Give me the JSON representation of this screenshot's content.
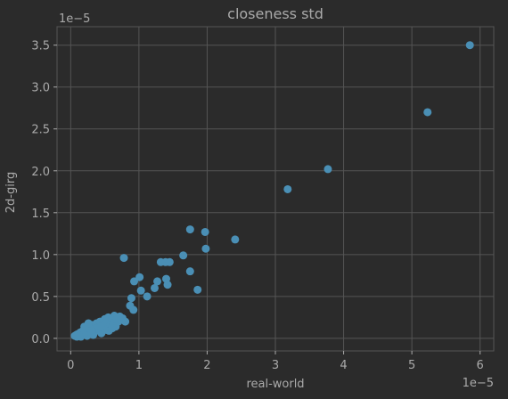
{
  "chart_data": {
    "type": "scatter",
    "title": "closeness std",
    "xlabel": "real-world",
    "ylabel": "2d-girg",
    "x_offset_label": "1e−5",
    "y_offset_label": "1e−5",
    "xlim": [
      -0.2,
      6.2
    ],
    "ylim": [
      -0.15,
      3.72
    ],
    "x_ticks": [
      0,
      1,
      2,
      3,
      4,
      5,
      6
    ],
    "x_tick_labels": [
      "0",
      "1",
      "2",
      "3",
      "4",
      "5",
      "6"
    ],
    "y_ticks": [
      0.0,
      0.5,
      1.0,
      1.5,
      2.0,
      2.5,
      3.0,
      3.5
    ],
    "y_tick_labels": [
      "0.0",
      "0.5",
      "1.0",
      "1.5",
      "2.0",
      "2.5",
      "3.0",
      "3.5"
    ],
    "grid": true,
    "marker_color": "#4a8fb5",
    "background_color": "#2b2b2b",
    "grid_color": "#555555",
    "text_color": "#aaaaaa",
    "points": [
      [
        5.85,
        3.5
      ],
      [
        5.23,
        2.7
      ],
      [
        3.77,
        2.02
      ],
      [
        3.18,
        1.78
      ],
      [
        2.41,
        1.18
      ],
      [
        1.75,
        1.3
      ],
      [
        1.97,
        1.27
      ],
      [
        1.98,
        1.07
      ],
      [
        1.65,
        0.99
      ],
      [
        1.75,
        0.8
      ],
      [
        1.86,
        0.58
      ],
      [
        0.78,
        0.96
      ],
      [
        1.32,
        0.91
      ],
      [
        1.39,
        0.91
      ],
      [
        1.45,
        0.91
      ],
      [
        1.4,
        0.71
      ],
      [
        1.42,
        0.64
      ],
      [
        1.27,
        0.68
      ],
      [
        1.23,
        0.6
      ],
      [
        1.01,
        0.73
      ],
      [
        1.03,
        0.57
      ],
      [
        1.12,
        0.5
      ],
      [
        0.93,
        0.68
      ],
      [
        0.89,
        0.48
      ],
      [
        0.87,
        0.39
      ],
      [
        0.92,
        0.34
      ],
      [
        0.8,
        0.2
      ],
      [
        0.76,
        0.24
      ],
      [
        0.64,
        0.27
      ],
      [
        0.6,
        0.22
      ],
      [
        0.55,
        0.25
      ],
      [
        0.5,
        0.23
      ],
      [
        0.46,
        0.17
      ],
      [
        0.43,
        0.2
      ],
      [
        0.4,
        0.15
      ],
      [
        0.38,
        0.18
      ],
      [
        0.35,
        0.13
      ],
      [
        0.32,
        0.16
      ],
      [
        0.3,
        0.11
      ],
      [
        0.27,
        0.13
      ],
      [
        0.25,
        0.09
      ],
      [
        0.22,
        0.11
      ],
      [
        0.2,
        0.07
      ],
      [
        0.18,
        0.09
      ],
      [
        0.16,
        0.05
      ],
      [
        0.14,
        0.07
      ],
      [
        0.12,
        0.04
      ],
      [
        0.1,
        0.05
      ],
      [
        0.08,
        0.04
      ],
      [
        0.06,
        0.03
      ],
      [
        0.2,
        0.14
      ],
      [
        0.28,
        0.06
      ],
      [
        0.35,
        0.08
      ],
      [
        0.42,
        0.1
      ],
      [
        0.48,
        0.12
      ],
      [
        0.52,
        0.18
      ],
      [
        0.58,
        0.15
      ],
      [
        0.62,
        0.18
      ],
      [
        0.66,
        0.14
      ],
      [
        0.7,
        0.2
      ],
      [
        0.72,
        0.26
      ],
      [
        0.68,
        0.23
      ],
      [
        0.56,
        0.09
      ],
      [
        0.45,
        0.06
      ],
      [
        0.33,
        0.04
      ],
      [
        0.24,
        0.03
      ],
      [
        0.15,
        0.02
      ],
      [
        0.09,
        0.02
      ],
      [
        0.26,
        0.18
      ],
      [
        0.38,
        0.12
      ],
      [
        0.5,
        0.1
      ],
      [
        0.61,
        0.12
      ],
      [
        0.44,
        0.14
      ],
      [
        0.31,
        0.09
      ],
      [
        0.19,
        0.05
      ],
      [
        0.13,
        0.03
      ]
    ]
  }
}
